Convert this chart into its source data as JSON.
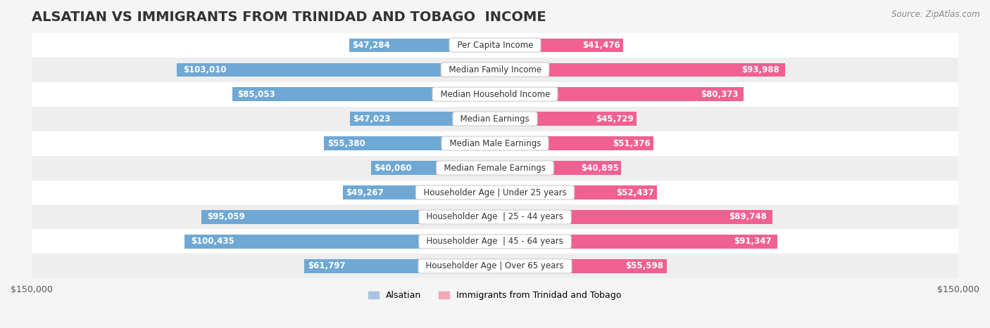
{
  "title": "ALSATIAN VS IMMIGRANTS FROM TRINIDAD AND TOBAGO  INCOME",
  "source": "Source: ZipAtlas.com",
  "categories": [
    "Per Capita Income",
    "Median Family Income",
    "Median Household Income",
    "Median Earnings",
    "Median Male Earnings",
    "Median Female Earnings",
    "Householder Age | Under 25 years",
    "Householder Age  | 25 - 44 years",
    "Householder Age  | 45 - 64 years",
    "Householder Age | Over 65 years"
  ],
  "alsatian_values": [
    47284,
    103010,
    85053,
    47023,
    55380,
    40060,
    49267,
    95059,
    100435,
    61797
  ],
  "trinidad_values": [
    41476,
    93988,
    80373,
    45729,
    51376,
    40895,
    52437,
    89748,
    91347,
    55598
  ],
  "alsatian_labels": [
    "$47,284",
    "$103,010",
    "$85,053",
    "$47,023",
    "$55,380",
    "$40,060",
    "$49,267",
    "$95,059",
    "$100,435",
    "$61,797"
  ],
  "trinidad_labels": [
    "$41,476",
    "$93,988",
    "$80,373",
    "$45,729",
    "$51,376",
    "$40,895",
    "$52,437",
    "$89,748",
    "$91,347",
    "$55,598"
  ],
  "alsatian_color_light": "#a8c4e0",
  "alsatian_color_dark": "#6fa8d4",
  "trinidad_color_light": "#f4a7bb",
  "trinidad_color_dark": "#f06090",
  "bar_height": 0.55,
  "xlim": 150000,
  "legend_label_alsatian": "Alsatian",
  "legend_label_trinidad": "Immigrants from Trinidad and Tobago",
  "bg_color": "#f5f5f5",
  "row_bg_colors": [
    "#ffffff",
    "#eeeeee"
  ],
  "label_fontsize": 8.5,
  "category_fontsize": 8.5,
  "title_fontsize": 14,
  "axis_label_fontsize": 9,
  "threshold_dark_label": 20000
}
